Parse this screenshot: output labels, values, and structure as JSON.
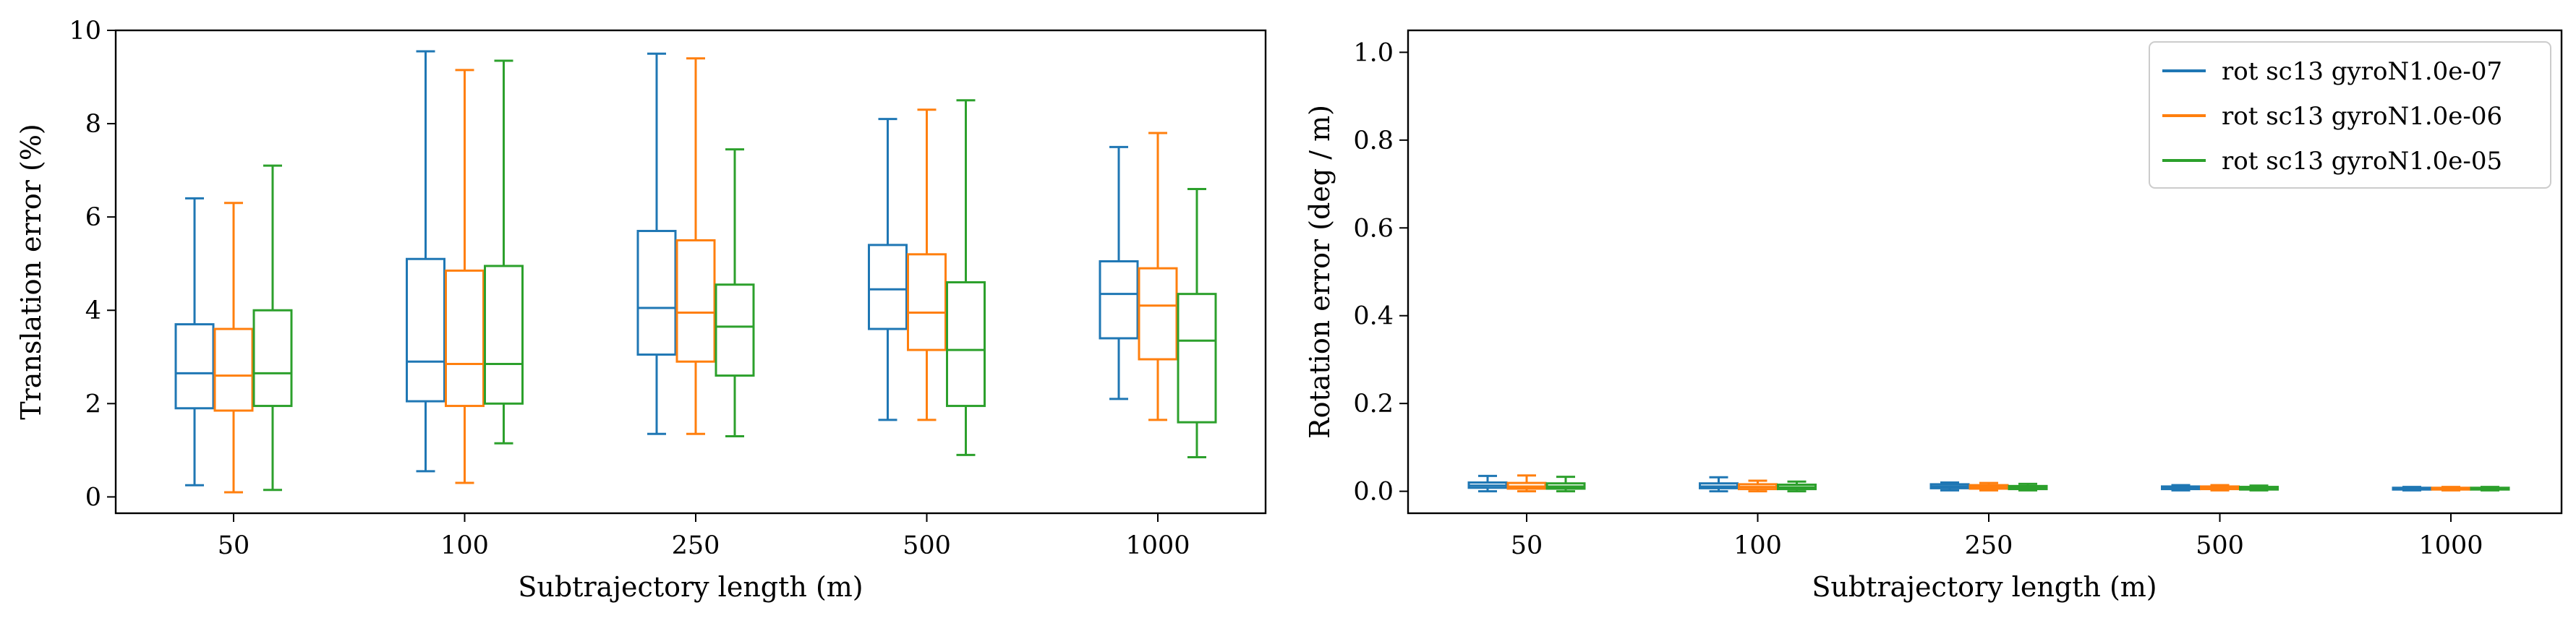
{
  "legend": {
    "placement": "top-right",
    "entries": [
      {
        "label": "rot sc13 gyroN1.0e-07",
        "color": "#1f77b4"
      },
      {
        "label": "rot sc13 gyroN1.0e-06",
        "color": "#ff7f0e"
      },
      {
        "label": "rot sc13 gyroN1.0e-05",
        "color": "#2ca02c"
      }
    ]
  },
  "chart_data": [
    {
      "type": "box",
      "title": "",
      "xlabel": "Subtrajectory length (m)",
      "ylabel": "Translation error (%)",
      "ylim": [
        -0.35,
        10
      ],
      "yticks": [
        "0",
        "2",
        "4",
        "6",
        "8",
        "10"
      ],
      "categories": [
        "50",
        "100",
        "250",
        "500",
        "1000"
      ],
      "grid": false,
      "series": [
        {
          "color": "#1f77b4",
          "boxes": [
            {
              "whislo": 0.25,
              "q1": 1.9,
              "med": 2.65,
              "q3": 3.7,
              "whishi": 6.4
            },
            {
              "whislo": 0.55,
              "q1": 2.05,
              "med": 2.9,
              "q3": 5.1,
              "whishi": 9.55
            },
            {
              "whislo": 1.35,
              "q1": 3.05,
              "med": 4.05,
              "q3": 5.7,
              "whishi": 9.5
            },
            {
              "whislo": 1.65,
              "q1": 3.6,
              "med": 4.45,
              "q3": 5.4,
              "whishi": 8.1
            },
            {
              "whislo": 2.1,
              "q1": 3.4,
              "med": 4.35,
              "q3": 5.05,
              "whishi": 7.5
            }
          ]
        },
        {
          "color": "#ff7f0e",
          "boxes": [
            {
              "whislo": 0.1,
              "q1": 1.85,
              "med": 2.6,
              "q3": 3.6,
              "whishi": 6.3
            },
            {
              "whislo": 0.3,
              "q1": 1.95,
              "med": 2.85,
              "q3": 4.85,
              "whishi": 9.15
            },
            {
              "whislo": 1.35,
              "q1": 2.9,
              "med": 3.95,
              "q3": 5.5,
              "whishi": 9.4
            },
            {
              "whislo": 1.65,
              "q1": 3.15,
              "med": 3.95,
              "q3": 5.2,
              "whishi": 8.3
            },
            {
              "whislo": 1.65,
              "q1": 2.95,
              "med": 4.1,
              "q3": 4.9,
              "whishi": 7.8
            }
          ]
        },
        {
          "color": "#2ca02c",
          "boxes": [
            {
              "whislo": 0.15,
              "q1": 1.95,
              "med": 2.65,
              "q3": 4.0,
              "whishi": 7.1
            },
            {
              "whislo": 1.15,
              "q1": 2.0,
              "med": 2.85,
              "q3": 4.95,
              "whishi": 9.35
            },
            {
              "whislo": 1.3,
              "q1": 2.6,
              "med": 3.65,
              "q3": 4.55,
              "whishi": 7.45
            },
            {
              "whislo": 0.9,
              "q1": 1.95,
              "med": 3.15,
              "q3": 4.6,
              "whishi": 8.5
            },
            {
              "whislo": 0.85,
              "q1": 1.6,
              "med": 3.35,
              "q3": 4.35,
              "whishi": 6.6
            }
          ]
        }
      ]
    },
    {
      "type": "box",
      "title": "",
      "xlabel": "Subtrajectory length (m)",
      "ylabel": "Rotation error (deg / m)",
      "ylim": [
        -0.05,
        1.05
      ],
      "yticks": [
        "0.0",
        "0.2",
        "0.4",
        "0.6",
        "0.8",
        "1.0"
      ],
      "categories": [
        "50",
        "100",
        "250",
        "500",
        "1000"
      ],
      "grid": false,
      "series": [
        {
          "color": "#1f77b4",
          "boxes": [
            {
              "whislo": 0.0,
              "q1": 0.008,
              "med": 0.013,
              "q3": 0.02,
              "whishi": 0.035
            },
            {
              "whislo": 0.0,
              "q1": 0.007,
              "med": 0.011,
              "q3": 0.018,
              "whishi": 0.032
            },
            {
              "whislo": 0.002,
              "q1": 0.007,
              "med": 0.011,
              "q3": 0.016,
              "whishi": 0.02
            },
            {
              "whislo": 0.002,
              "q1": 0.005,
              "med": 0.008,
              "q3": 0.011,
              "whishi": 0.014
            },
            {
              "whislo": 0.002,
              "q1": 0.004,
              "med": 0.006,
              "q3": 0.008,
              "whishi": 0.01
            }
          ]
        },
        {
          "color": "#ff7f0e",
          "boxes": [
            {
              "whislo": 0.0,
              "q1": 0.006,
              "med": 0.011,
              "q3": 0.019,
              "whishi": 0.036
            },
            {
              "whislo": 0.0,
              "q1": 0.005,
              "med": 0.01,
              "q3": 0.016,
              "whishi": 0.024
            },
            {
              "whislo": 0.002,
              "q1": 0.006,
              "med": 0.01,
              "q3": 0.014,
              "whishi": 0.019
            },
            {
              "whislo": 0.002,
              "q1": 0.005,
              "med": 0.008,
              "q3": 0.011,
              "whishi": 0.014
            },
            {
              "whislo": 0.002,
              "q1": 0.004,
              "med": 0.006,
              "q3": 0.008,
              "whishi": 0.01
            }
          ]
        },
        {
          "color": "#2ca02c",
          "boxes": [
            {
              "whislo": 0.0,
              "q1": 0.006,
              "med": 0.011,
              "q3": 0.018,
              "whishi": 0.033
            },
            {
              "whislo": 0.0,
              "q1": 0.005,
              "med": 0.009,
              "q3": 0.015,
              "whishi": 0.022
            },
            {
              "whislo": 0.002,
              "q1": 0.005,
              "med": 0.008,
              "q3": 0.012,
              "whishi": 0.017
            },
            {
              "whislo": 0.002,
              "q1": 0.004,
              "med": 0.007,
              "q3": 0.01,
              "whishi": 0.013
            },
            {
              "whislo": 0.002,
              "q1": 0.004,
              "med": 0.006,
              "q3": 0.008,
              "whishi": 0.01
            }
          ]
        }
      ]
    }
  ]
}
